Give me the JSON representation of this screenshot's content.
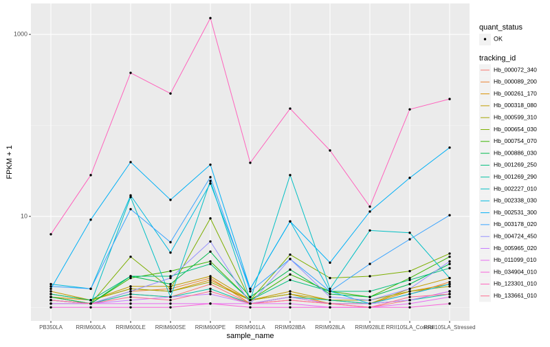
{
  "chart_data": {
    "type": "line",
    "log_y": true,
    "grid": true,
    "x_label": "sample_name",
    "y_label": "FPKM + 1",
    "categories": [
      "PB350LA",
      "RRIM600LA",
      "RRIM600LE",
      "RRIM600SE",
      "RRIM600PE",
      "RRIM901LA",
      "RRIM928BA",
      "RRIM928LA",
      "RRIM928LE",
      "RRII105LA_Control",
      "RRII105LA_Stressed"
    ],
    "ylim": [
      0.71,
      2190
    ],
    "yticks": [
      10,
      1000
    ],
    "y_minor_grid": [
      1,
      100
    ],
    "legend_position": "right",
    "shape_legend": {
      "title": "quant_status",
      "entries": [
        "OK"
      ]
    },
    "color_legend_title": "tracking_id",
    "series": [
      {
        "name": "Hb_000072_340",
        "color": "#F8766D",
        "values": [
          1.3,
          1.1,
          1.4,
          1.3,
          1.8,
          1.1,
          1.2,
          1.1,
          1.0,
          1.2,
          1.5
        ]
      },
      {
        "name": "Hb_000089_200",
        "color": "#EA8331",
        "values": [
          1.2,
          1.1,
          1.5,
          1.6,
          2.1,
          1.1,
          1.3,
          1.1,
          1.1,
          1.4,
          1.9
        ]
      },
      {
        "name": "Hb_000261_170",
        "color": "#D89000",
        "values": [
          1.3,
          1.2,
          1.6,
          1.5,
          2.0,
          1.2,
          1.4,
          1.1,
          1.1,
          1.5,
          1.8
        ]
      },
      {
        "name": "Hb_000318_080",
        "color": "#C09B00",
        "values": [
          1.5,
          1.2,
          1.7,
          1.7,
          2.2,
          1.2,
          1.5,
          1.2,
          1.1,
          1.6,
          2.1
        ]
      },
      {
        "name": "Hb_000599_310",
        "color": "#A3A500",
        "values": [
          1.4,
          1.2,
          1.6,
          1.5,
          1.9,
          1.2,
          1.4,
          1.2,
          1.2,
          1.5,
          1.7
        ]
      },
      {
        "name": "Hb_000654_030",
        "color": "#7CAE00",
        "values": [
          1.3,
          1.1,
          3.6,
          1.6,
          9.5,
          1.2,
          3.8,
          2.1,
          2.2,
          2.5,
          3.9
        ]
      },
      {
        "name": "Hb_000754_070",
        "color": "#39B600",
        "values": [
          1.2,
          1.1,
          2.1,
          2.5,
          3.2,
          1.2,
          2.3,
          1.5,
          1.3,
          2.1,
          3.6
        ]
      },
      {
        "name": "Hb_000886_030",
        "color": "#00BB4E",
        "values": [
          1.3,
          1.1,
          2.2,
          1.8,
          4.1,
          1.3,
          2.6,
          1.4,
          1.3,
          1.8,
          3.0
        ]
      },
      {
        "name": "Hb_001269_250",
        "color": "#00BF7D",
        "values": [
          1.4,
          1.2,
          2.2,
          2.2,
          3.0,
          1.2,
          2.0,
          1.5,
          1.5,
          2.0,
          2.7
        ]
      },
      {
        "name": "Hb_001269_290",
        "color": "#00C1A3",
        "values": [
          1.2,
          1.1,
          1.4,
          1.3,
          1.6,
          1.1,
          1.3,
          1.2,
          1.1,
          1.2,
          1.4
        ]
      },
      {
        "name": "Hb_002227_010",
        "color": "#00BFC4",
        "values": [
          1.1,
          1.1,
          16.3,
          1.3,
          24.5,
          1.2,
          28.4,
          1.6,
          7.0,
          6.6,
          2.1
        ]
      },
      {
        "name": "Hb_002338_030",
        "color": "#00BAE0",
        "values": [
          1.8,
          1.6,
          17.0,
          4.0,
          23.0,
          1.6,
          8.8,
          1.5,
          1.1,
          1.4,
          1.8
        ]
      },
      {
        "name": "Hb_002531_300",
        "color": "#00B0F6",
        "values": [
          1.6,
          9.2,
          39.5,
          15.2,
          37.0,
          1.6,
          8.8,
          3.1,
          11.3,
          26.5,
          57
        ]
      },
      {
        "name": "Hb_003178_020",
        "color": "#35A2FF",
        "values": [
          1.7,
          1.6,
          12.0,
          5.2,
          27.0,
          1.5,
          3.4,
          1.5,
          3.0,
          5.6,
          10.3
        ]
      },
      {
        "name": "Hb_004724_450",
        "color": "#9590FF",
        "values": [
          1.2,
          1.1,
          1.5,
          2.1,
          5.3,
          1.1,
          3.4,
          1.3,
          1.2,
          1.6,
          3.2
        ]
      },
      {
        "name": "Hb_005965_020",
        "color": "#C77CFF",
        "values": [
          1.2,
          1.1,
          1.2,
          1.3,
          1.4,
          1.1,
          1.3,
          1.1,
          1.1,
          1.2,
          1.5
        ]
      },
      {
        "name": "Hb_011099_010",
        "color": "#E76BF3",
        "values": [
          1.1,
          1.1,
          1.1,
          1.1,
          1.1,
          1.1,
          1.1,
          1.0,
          1.0,
          1.1,
          1.3
        ]
      },
      {
        "name": "Hb_034904_010",
        "color": "#FA62DB",
        "values": [
          1.0,
          1.0,
          1.0,
          1.0,
          1.1,
          1.0,
          1.0,
          1.0,
          1.0,
          1.0,
          1.1
        ]
      },
      {
        "name": "Hb_123301_010",
        "color": "#FF62BC",
        "values": [
          6.36,
          28.4,
          378,
          224,
          1510,
          38.8,
          153,
          53,
          12.8,
          150,
          195
        ]
      },
      {
        "name": "Hb_133661_010",
        "color": "#FF6C91",
        "values": [
          1.2,
          1.1,
          1.3,
          1.2,
          1.5,
          1.1,
          1.2,
          1.1,
          1.0,
          1.3,
          1.4
        ]
      }
    ]
  }
}
